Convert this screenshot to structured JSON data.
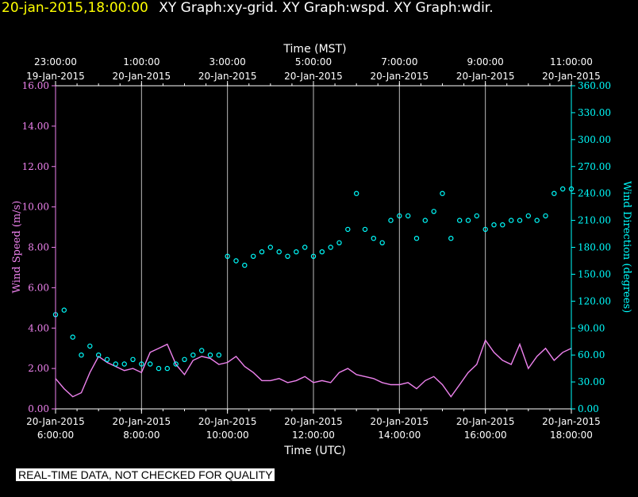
{
  "header": {
    "datetime": "20-jan-2015,18:00:00",
    "titles": "XY Graph:xy-grid.  XY Graph:wspd.  XY Graph:wdir."
  },
  "disclaimer": "REAL-TIME DATA, NOT CHECKED FOR QUALITY",
  "chart_data": {
    "type": "scatter",
    "background": "#000000",
    "grid": true,
    "top_axis": {
      "label": "Time (MST)",
      "ticks": [
        [
          "23:00:00",
          "19-Jan-2015"
        ],
        [
          "1:00:00",
          "20-Jan-2015"
        ],
        [
          "3:00:00",
          "20-Jan-2015"
        ],
        [
          "5:00:00",
          "20-Jan-2015"
        ],
        [
          "7:00:00",
          "20-Jan-2015"
        ],
        [
          "9:00:00",
          "20-Jan-2015"
        ],
        [
          "11:00:00",
          "20-Jan-2015"
        ]
      ]
    },
    "bottom_axis": {
      "label": "Time (UTC)",
      "ticks": [
        [
          "20-Jan-2015",
          "6:00:00"
        ],
        [
          "20-Jan-2015",
          "8:00:00"
        ],
        [
          "20-Jan-2015",
          "10:00:00"
        ],
        [
          "20-Jan-2015",
          "12:00:00"
        ],
        [
          "20-Jan-2015",
          "14:00:00"
        ],
        [
          "20-Jan-2015",
          "16:00:00"
        ],
        [
          "20-Jan-2015",
          "18:00:00"
        ]
      ]
    },
    "xlim_hours_utc": [
      6,
      18
    ],
    "left_axis": {
      "label": "Wind Speed (m/s)",
      "color": "#ee82ee",
      "ylim": [
        0,
        16
      ],
      "ticks": [
        "0.00",
        "2.00",
        "4.00",
        "6.00",
        "8.00",
        "10.00",
        "12.00",
        "14.00",
        "16.00"
      ]
    },
    "right_axis": {
      "label": "Wind Direction (degrees)",
      "color": "#00ffff",
      "ylim": [
        0,
        360
      ],
      "ticks": [
        "0.00",
        "30.00",
        "60.00",
        "90.00",
        "120.00",
        "150.00",
        "180.00",
        "210.00",
        "240.00",
        "270.00",
        "300.00",
        "330.00",
        "360.00"
      ]
    },
    "series": [
      {
        "name": "wspd",
        "color": "#ee82ee",
        "style": "line",
        "hour": [
          6.0,
          6.2,
          6.4,
          6.6,
          6.8,
          7.0,
          7.2,
          7.4,
          7.6,
          7.8,
          8.0,
          8.2,
          8.4,
          8.6,
          8.8,
          9.0,
          9.2,
          9.4,
          9.6,
          9.8,
          10.0,
          10.2,
          10.4,
          10.6,
          10.8,
          11.0,
          11.2,
          11.4,
          11.6,
          11.8,
          12.0,
          12.2,
          12.4,
          12.6,
          12.8,
          13.0,
          13.2,
          13.4,
          13.6,
          13.8,
          14.0,
          14.2,
          14.4,
          14.6,
          14.8,
          15.0,
          15.2,
          15.4,
          15.6,
          15.8,
          16.0,
          16.2,
          16.4,
          16.6,
          16.8,
          17.0,
          17.2,
          17.4,
          17.6,
          17.8,
          18.0
        ],
        "values": [
          1.5,
          1.0,
          0.6,
          0.8,
          1.8,
          2.6,
          2.3,
          2.1,
          1.9,
          2.0,
          1.8,
          2.8,
          3.0,
          3.2,
          2.2,
          1.7,
          2.4,
          2.6,
          2.5,
          2.2,
          2.3,
          2.6,
          2.1,
          1.8,
          1.4,
          1.4,
          1.5,
          1.3,
          1.4,
          1.6,
          1.3,
          1.4,
          1.3,
          1.8,
          2.0,
          1.7,
          1.6,
          1.5,
          1.3,
          1.2,
          1.2,
          1.3,
          1.0,
          1.4,
          1.6,
          1.2,
          0.6,
          1.2,
          1.8,
          2.2,
          3.4,
          2.8,
          2.4,
          2.2,
          3.2,
          2.0,
          2.6,
          3.0,
          2.4,
          2.8,
          3.0
        ]
      },
      {
        "name": "wdir",
        "color": "#00ffff",
        "style": "points",
        "hour": [
          6.0,
          6.2,
          6.4,
          6.6,
          6.8,
          7.0,
          7.2,
          7.4,
          7.6,
          7.8,
          8.0,
          8.2,
          8.4,
          8.6,
          8.8,
          9.0,
          9.2,
          9.4,
          9.6,
          9.8,
          10.0,
          10.2,
          10.4,
          10.6,
          10.8,
          11.0,
          11.2,
          11.4,
          11.6,
          11.8,
          12.0,
          12.2,
          12.4,
          12.6,
          12.8,
          13.0,
          13.2,
          13.4,
          13.6,
          13.8,
          14.0,
          14.2,
          14.4,
          14.6,
          14.8,
          15.0,
          15.2,
          15.4,
          15.6,
          15.8,
          16.0,
          16.2,
          16.4,
          16.6,
          16.8,
          17.0,
          17.2,
          17.4,
          17.6,
          17.8,
          18.0
        ],
        "values": [
          105,
          110,
          80,
          60,
          70,
          60,
          55,
          50,
          50,
          55,
          50,
          50,
          45,
          45,
          50,
          55,
          60,
          65,
          60,
          60,
          170,
          165,
          160,
          170,
          175,
          180,
          175,
          170,
          175,
          180,
          170,
          175,
          180,
          185,
          200,
          240,
          200,
          190,
          185,
          210,
          215,
          215,
          190,
          210,
          220,
          240,
          190,
          210,
          210,
          215,
          200,
          205,
          205,
          210,
          210,
          215,
          210,
          215,
          240,
          245,
          245
        ]
      }
    ]
  }
}
